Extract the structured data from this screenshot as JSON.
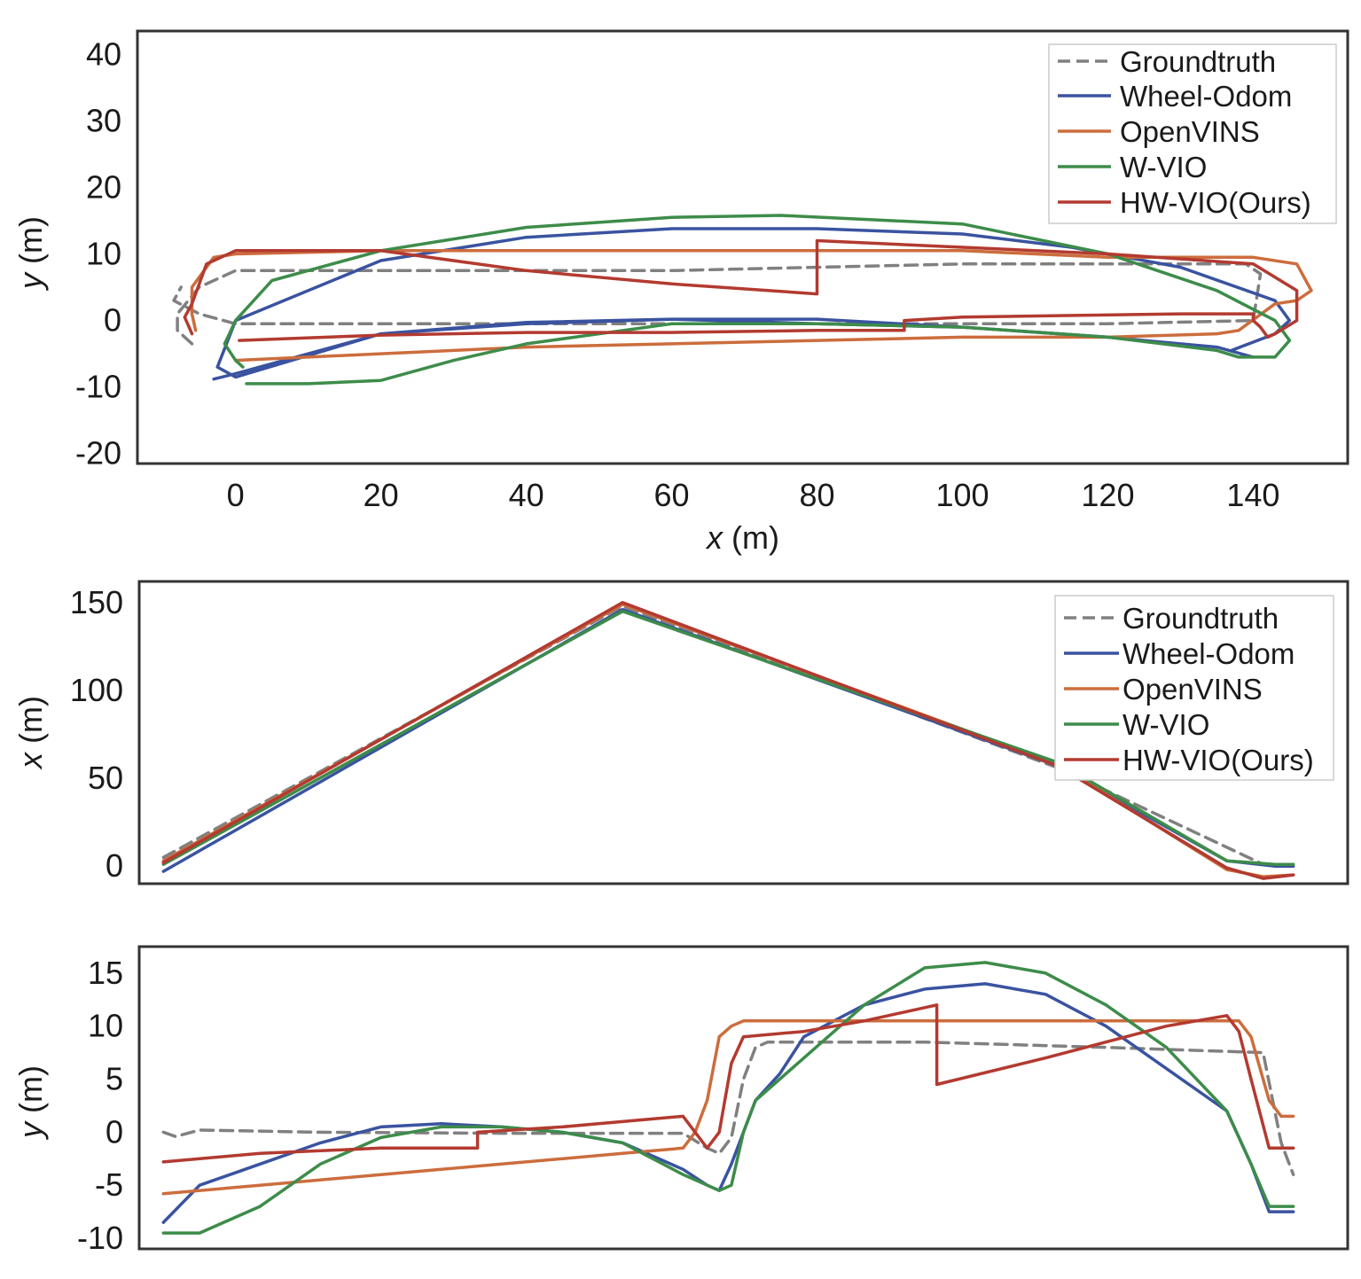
{
  "colors": {
    "Groundtruth": "#808080",
    "Wheel-Odom": "#3a53a0",
    "OpenVINS": "#cc6d3d",
    "W-VIO": "#3d8c4a",
    "HW-VIO(Ours)": "#b33a30"
  },
  "chart_data": [
    {
      "type": "line",
      "title": "",
      "xlabel_var": "x",
      "xlabel_unit": " (m)",
      "ylabel_var": "y",
      "ylabel_unit": " (m)",
      "xlim": [
        -13.5,
        153
      ],
      "ylim": [
        -21.5,
        43.5
      ],
      "xticks": [
        0,
        20,
        40,
        60,
        80,
        100,
        120,
        140
      ],
      "yticks": [
        40,
        30,
        20,
        10,
        0,
        -10,
        -20
      ],
      "grid": false,
      "legend_position": "top-right",
      "legend": [
        "Groundtruth",
        "Wheel-Odom",
        "OpenVINS",
        "W-VIO",
        "HW-VIO(Ours)"
      ],
      "series": [
        {
          "name": "Groundtruth",
          "style": "dashed",
          "x": [
            -6,
            -8,
            -8,
            -5,
            0,
            20,
            60,
            100,
            139,
            141,
            140,
            120,
            100,
            80,
            60,
            40,
            20,
            5,
            0,
            -5,
            -8.5,
            -7.5
          ],
          "y": [
            -3.5,
            -1.5,
            1,
            5,
            7.5,
            7.5,
            7.5,
            8.5,
            8.5,
            7,
            0,
            -0.5,
            -0.5,
            -0.5,
            -0.5,
            -0.5,
            -0.5,
            -0.5,
            -0.5,
            1,
            3,
            5
          ]
        },
        {
          "name": "Wheel-Odom",
          "style": "solid",
          "x": [
            -3,
            0,
            20,
            40,
            60,
            80,
            100,
            120,
            135,
            140,
            140,
            135,
            120,
            100,
            80,
            60,
            40,
            20,
            0,
            -2.5,
            0,
            20,
            40,
            60,
            80,
            100,
            115,
            130,
            143,
            145,
            143,
            137
          ],
          "y": [
            -8.8,
            -8,
            -2,
            -0.3,
            0.2,
            -0.5,
            -1,
            -2.5,
            -4,
            -5.5,
            -5.5,
            -4,
            -2.5,
            -1,
            0.2,
            0.2,
            -0.5,
            -2,
            -8.5,
            -7,
            0,
            9,
            12.5,
            13.8,
            13.8,
            13,
            11,
            8,
            3,
            0,
            -2,
            -4.5
          ]
        },
        {
          "name": "OpenVINS",
          "style": "solid",
          "x": [
            0,
            20,
            40,
            60,
            80,
            100,
            120,
            135,
            138,
            143,
            146,
            148,
            146,
            140,
            120,
            100,
            80,
            60,
            40,
            20,
            0,
            -3,
            -6,
            -6,
            -5.5
          ],
          "y": [
            -6,
            -5,
            -4,
            -3.5,
            -3,
            -2.5,
            -2.5,
            -2,
            -1.5,
            2.5,
            3,
            4.5,
            8.5,
            9.5,
            9.5,
            10.5,
            10.5,
            10.5,
            10.5,
            10.5,
            10,
            9.5,
            5,
            1,
            -1.5
          ]
        },
        {
          "name": "W-VIO",
          "style": "solid",
          "x": [
            1.5,
            10,
            20,
            30,
            40,
            60,
            80,
            100,
            120,
            135,
            138,
            143,
            145,
            143,
            135,
            120,
            100,
            75,
            60,
            40,
            20,
            5,
            0,
            -1.5,
            0,
            1
          ],
          "y": [
            -9.5,
            -9.5,
            -9,
            -6,
            -3.5,
            -0.5,
            -0.5,
            -1,
            -2.5,
            -4.5,
            -5.5,
            -5.5,
            -3,
            0,
            4.5,
            10,
            14.5,
            15.8,
            15.5,
            14,
            10.5,
            6,
            0,
            -3.5,
            -6,
            -7
          ]
        },
        {
          "name": "HW-VIO(Ours)",
          "style": "solid",
          "x": [
            -6,
            -7,
            -6,
            -4,
            0,
            20,
            40,
            60,
            80,
            80,
            100,
            120,
            140,
            146,
            146,
            143,
            142,
            141,
            140,
            140,
            130,
            100,
            92,
            92,
            80,
            60,
            40,
            20,
            0.5
          ],
          "y": [
            -2,
            0.5,
            2.5,
            8.5,
            10.5,
            10.5,
            7.5,
            5.5,
            4,
            12,
            11,
            10,
            8.5,
            4.5,
            0,
            -2,
            -2.5,
            -1,
            0,
            1,
            1,
            0.5,
            0,
            -1.5,
            -1.5,
            -1.8,
            -1.8,
            -2.2,
            -3
          ]
        }
      ]
    },
    {
      "type": "line",
      "title": "",
      "xlabel": "",
      "ylabel_var": "x",
      "ylabel_unit": " (m)",
      "xlim": [
        0,
        100
      ],
      "ylim": [
        -10,
        162
      ],
      "yticks": [
        150,
        100,
        50,
        0
      ],
      "grid": false,
      "legend_position": "top-right",
      "legend": [
        "Groundtruth",
        "Wheel-Odom",
        "OpenVINS",
        "W-VIO",
        "HW-VIO(Ours)"
      ],
      "series": [
        {
          "name": "Groundtruth",
          "style": "dashed",
          "x": [
            2,
            40,
            76,
            93,
            95.5
          ],
          "y": [
            5,
            148,
            56,
            1,
            1
          ]
        },
        {
          "name": "Wheel-Odom",
          "style": "solid",
          "x": [
            2,
            40,
            76,
            90,
            94,
            95.5
          ],
          "y": [
            -3,
            146,
            57,
            3,
            0,
            0
          ]
        },
        {
          "name": "OpenVINS",
          "style": "solid",
          "x": [
            2,
            40,
            76,
            90,
            93,
            95.5
          ],
          "y": [
            3,
            149,
            58,
            -2,
            -6,
            -5
          ]
        },
        {
          "name": "W-VIO",
          "style": "solid",
          "x": [
            2,
            40,
            76,
            90,
            94,
            95.5
          ],
          "y": [
            1,
            145,
            59,
            3,
            1,
            1
          ]
        },
        {
          "name": "HW-VIO(Ours)",
          "style": "solid",
          "x": [
            2,
            40,
            76,
            90,
            93,
            95.5
          ],
          "y": [
            2,
            150,
            57,
            -1,
            -7,
            -5
          ]
        }
      ]
    },
    {
      "type": "line",
      "title": "",
      "xlabel": "",
      "ylabel_var": "y",
      "ylabel_unit": " (m)",
      "xlim": [
        0,
        100
      ],
      "ylim": [
        -11,
        17.5
      ],
      "yticks": [
        15,
        10,
        5,
        0,
        -5,
        -10
      ],
      "grid": false,
      "series": [
        {
          "name": "Groundtruth",
          "style": "dashed",
          "x": [
            2,
            3,
            5,
            15,
            30,
            45,
            47,
            48,
            49,
            50,
            51,
            52,
            55,
            65,
            80,
            93,
            94.5,
            95.5
          ],
          "y": [
            0,
            -0.4,
            0.2,
            0,
            -0.1,
            -0.1,
            -1.5,
            -2,
            -0.5,
            5,
            8,
            8.5,
            8.5,
            8.5,
            8,
            7.5,
            -1,
            -4
          ]
        },
        {
          "name": "Wheel-Odom",
          "style": "solid",
          "x": [
            2,
            5,
            10,
            15,
            20,
            25,
            30,
            35,
            40,
            45,
            47,
            48,
            49,
            50,
            51,
            53,
            55,
            60,
            65,
            70,
            75,
            80,
            85,
            90,
            92,
            93.5,
            95.5
          ],
          "y": [
            -8.5,
            -5,
            -3,
            -1,
            0.5,
            0.8,
            0.5,
            0,
            -1,
            -3.5,
            -5,
            -5.5,
            -3,
            0,
            3,
            5.5,
            9,
            12,
            13.5,
            14,
            13,
            10,
            6,
            2,
            -3,
            -7.5,
            -7.5
          ]
        },
        {
          "name": "OpenVINS",
          "style": "solid",
          "x": [
            2,
            10,
            20,
            30,
            40,
            45,
            46,
            47,
            48,
            49,
            50,
            60,
            80,
            91,
            92,
            93.5,
            94.5,
            95.5
          ],
          "y": [
            -5.8,
            -5,
            -4,
            -3,
            -2,
            -1.5,
            0,
            3,
            9,
            10,
            10.5,
            10.5,
            10.5,
            10.5,
            9,
            3,
            1.5,
            1.5
          ]
        },
        {
          "name": "W-VIO",
          "style": "solid",
          "x": [
            2,
            5,
            10,
            15,
            20,
            25,
            30,
            35,
            40,
            45,
            48,
            49,
            50,
            51,
            52,
            55,
            60,
            65,
            70,
            75,
            80,
            85,
            90,
            92,
            93.5,
            95.5
          ],
          "y": [
            -9.5,
            -9.5,
            -7,
            -3,
            -0.5,
            0.5,
            0.5,
            0,
            -1,
            -4,
            -5.5,
            -5,
            0,
            3,
            4,
            7,
            12,
            15.5,
            16,
            15,
            12,
            8,
            2,
            -3,
            -7,
            -7
          ]
        },
        {
          "name": "HW-VIO(Ours)",
          "style": "solid",
          "x": [
            2,
            10,
            20,
            28,
            28,
            35,
            45,
            46,
            47,
            48,
            49,
            50,
            55,
            60,
            66,
            66,
            75,
            85,
            90,
            91,
            92,
            93.5,
            95.5
          ],
          "y": [
            -2.8,
            -2,
            -1.5,
            -1.5,
            0,
            0.5,
            1.5,
            0,
            -1.5,
            0,
            6.5,
            9,
            9.5,
            10.5,
            12,
            4.5,
            7,
            10,
            11,
            9.5,
            5,
            -1.5,
            -1.5
          ]
        }
      ]
    }
  ]
}
